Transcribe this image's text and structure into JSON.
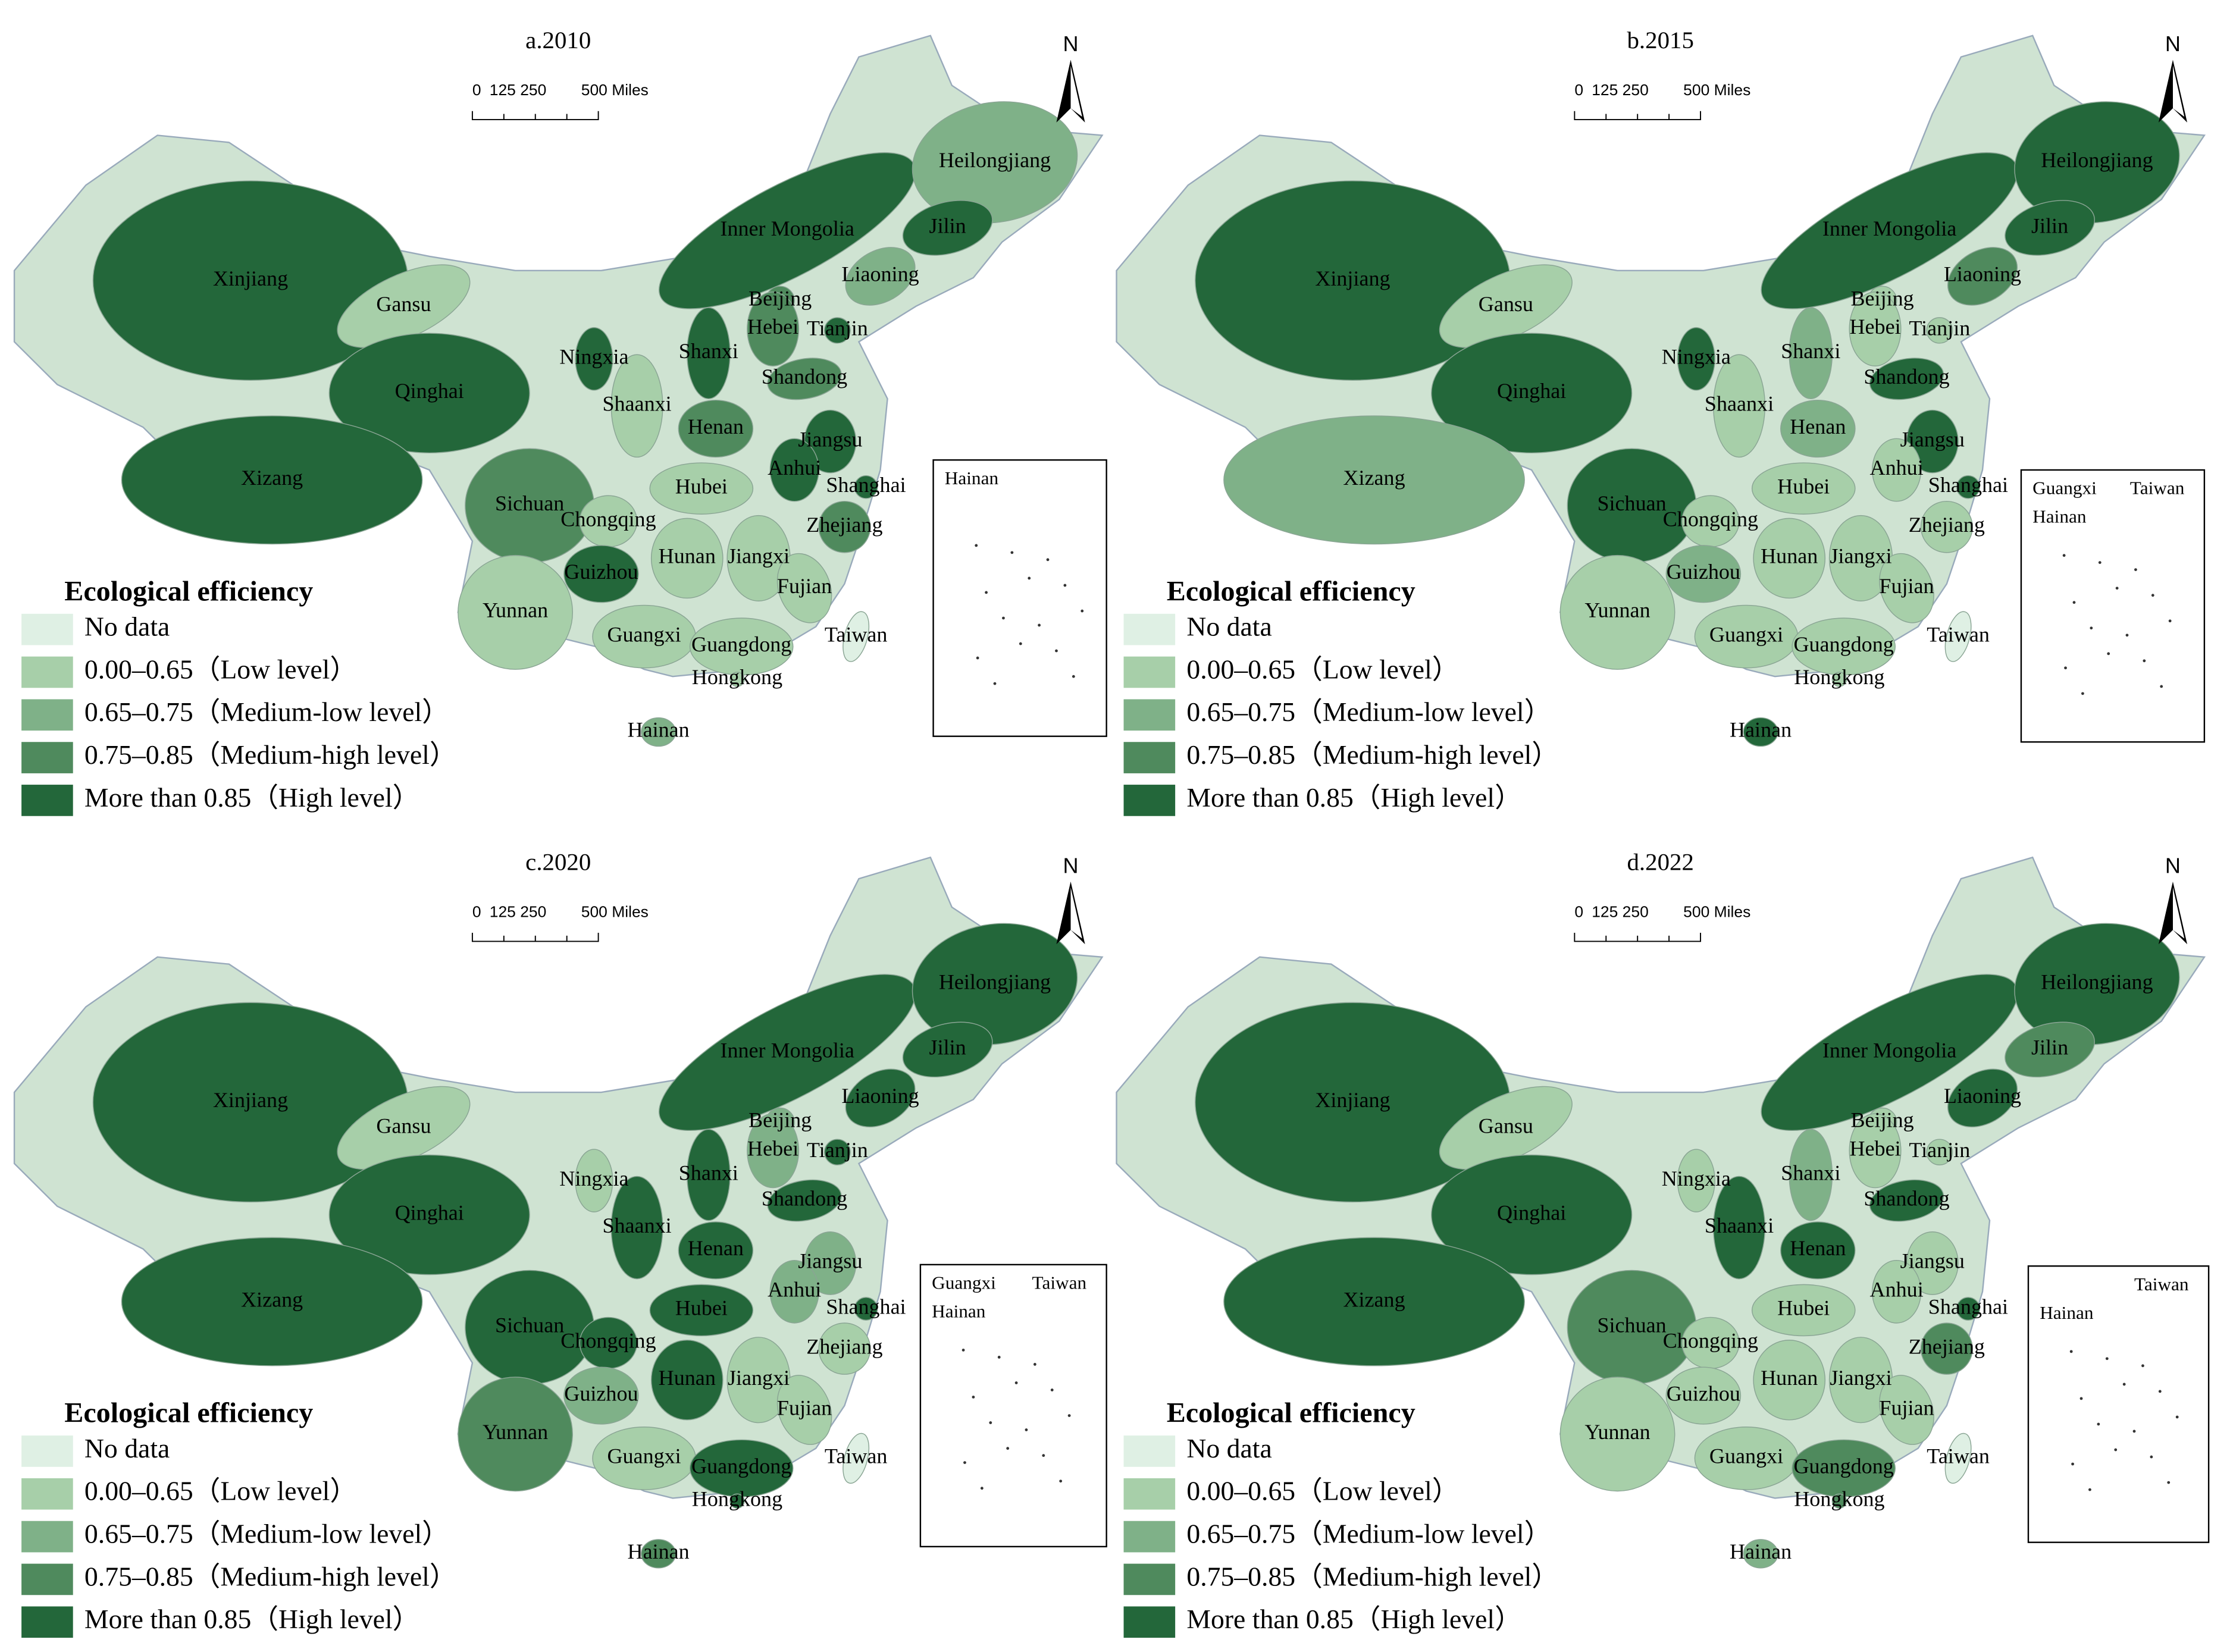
{
  "scale_bar": {
    "labels": [
      "0",
      "125 250",
      "500 Miles"
    ]
  },
  "north": "N",
  "legend": {
    "title": "Ecological efficiency",
    "items": [
      {
        "label": "No data",
        "color": "#dff0e4"
      },
      {
        "label": "0.00–0.65（Low level）",
        "color": "#a7cfa9"
      },
      {
        "label": "0.65–0.75（Medium-low level）",
        "color": "#7fb188"
      },
      {
        "label": "0.75–0.85（Medium-high level）",
        "color": "#4f8a5d"
      },
      {
        "label": "More than 0.85（High level）",
        "color": "#23673a"
      }
    ]
  },
  "provinces": [
    "Xinjiang",
    "Gansu",
    "Qinghai",
    "Xizang",
    "Inner Mongolia",
    "Heilongjiang",
    "Jilin",
    "Liaoning",
    "Beijing",
    "Tianjin",
    "Hebei",
    "Shanxi",
    "Ningxia",
    "Shandong",
    "Shaanxi",
    "Henan",
    "Jiangsu",
    "Anhui",
    "Shanghai",
    "Hubei",
    "Sichuan",
    "Chongqing",
    "Zhejiang",
    "Hunan",
    "Jiangxi",
    "Guizhou",
    "Fujian",
    "Yunnan",
    "Guangxi",
    "Guangdong",
    "Hongkong",
    "Taiwan",
    "Hainan"
  ],
  "panels": [
    {
      "title": "a.2010",
      "levels": [
        4,
        1,
        4,
        4,
        4,
        2,
        4,
        2,
        3,
        4,
        3,
        4,
        4,
        3,
        1,
        3,
        4,
        4,
        4,
        1,
        3,
        1,
        3,
        1,
        1,
        4,
        1,
        1,
        1,
        1,
        1,
        0,
        2
      ]
    },
    {
      "title": "b.2015",
      "levels": [
        4,
        1,
        4,
        2,
        4,
        4,
        4,
        3,
        1,
        1,
        1,
        2,
        4,
        4,
        1,
        2,
        4,
        1,
        4,
        1,
        4,
        1,
        1,
        1,
        1,
        2,
        1,
        1,
        1,
        1,
        1,
        0,
        4
      ]
    },
    {
      "title": "c.2020",
      "levels": [
        4,
        1,
        4,
        4,
        4,
        4,
        4,
        4,
        2,
        4,
        2,
        4,
        1,
        4,
        4,
        4,
        2,
        2,
        4,
        4,
        4,
        4,
        1,
        4,
        1,
        2,
        1,
        3,
        1,
        4,
        4,
        0,
        3
      ]
    },
    {
      "title": "d.2022",
      "levels": [
        4,
        1,
        4,
        4,
        4,
        4,
        3,
        4,
        1,
        1,
        1,
        2,
        1,
        4,
        4,
        4,
        1,
        1,
        4,
        1,
        3,
        1,
        3,
        1,
        1,
        1,
        1,
        1,
        1,
        3,
        3,
        0,
        2
      ]
    }
  ]
}
